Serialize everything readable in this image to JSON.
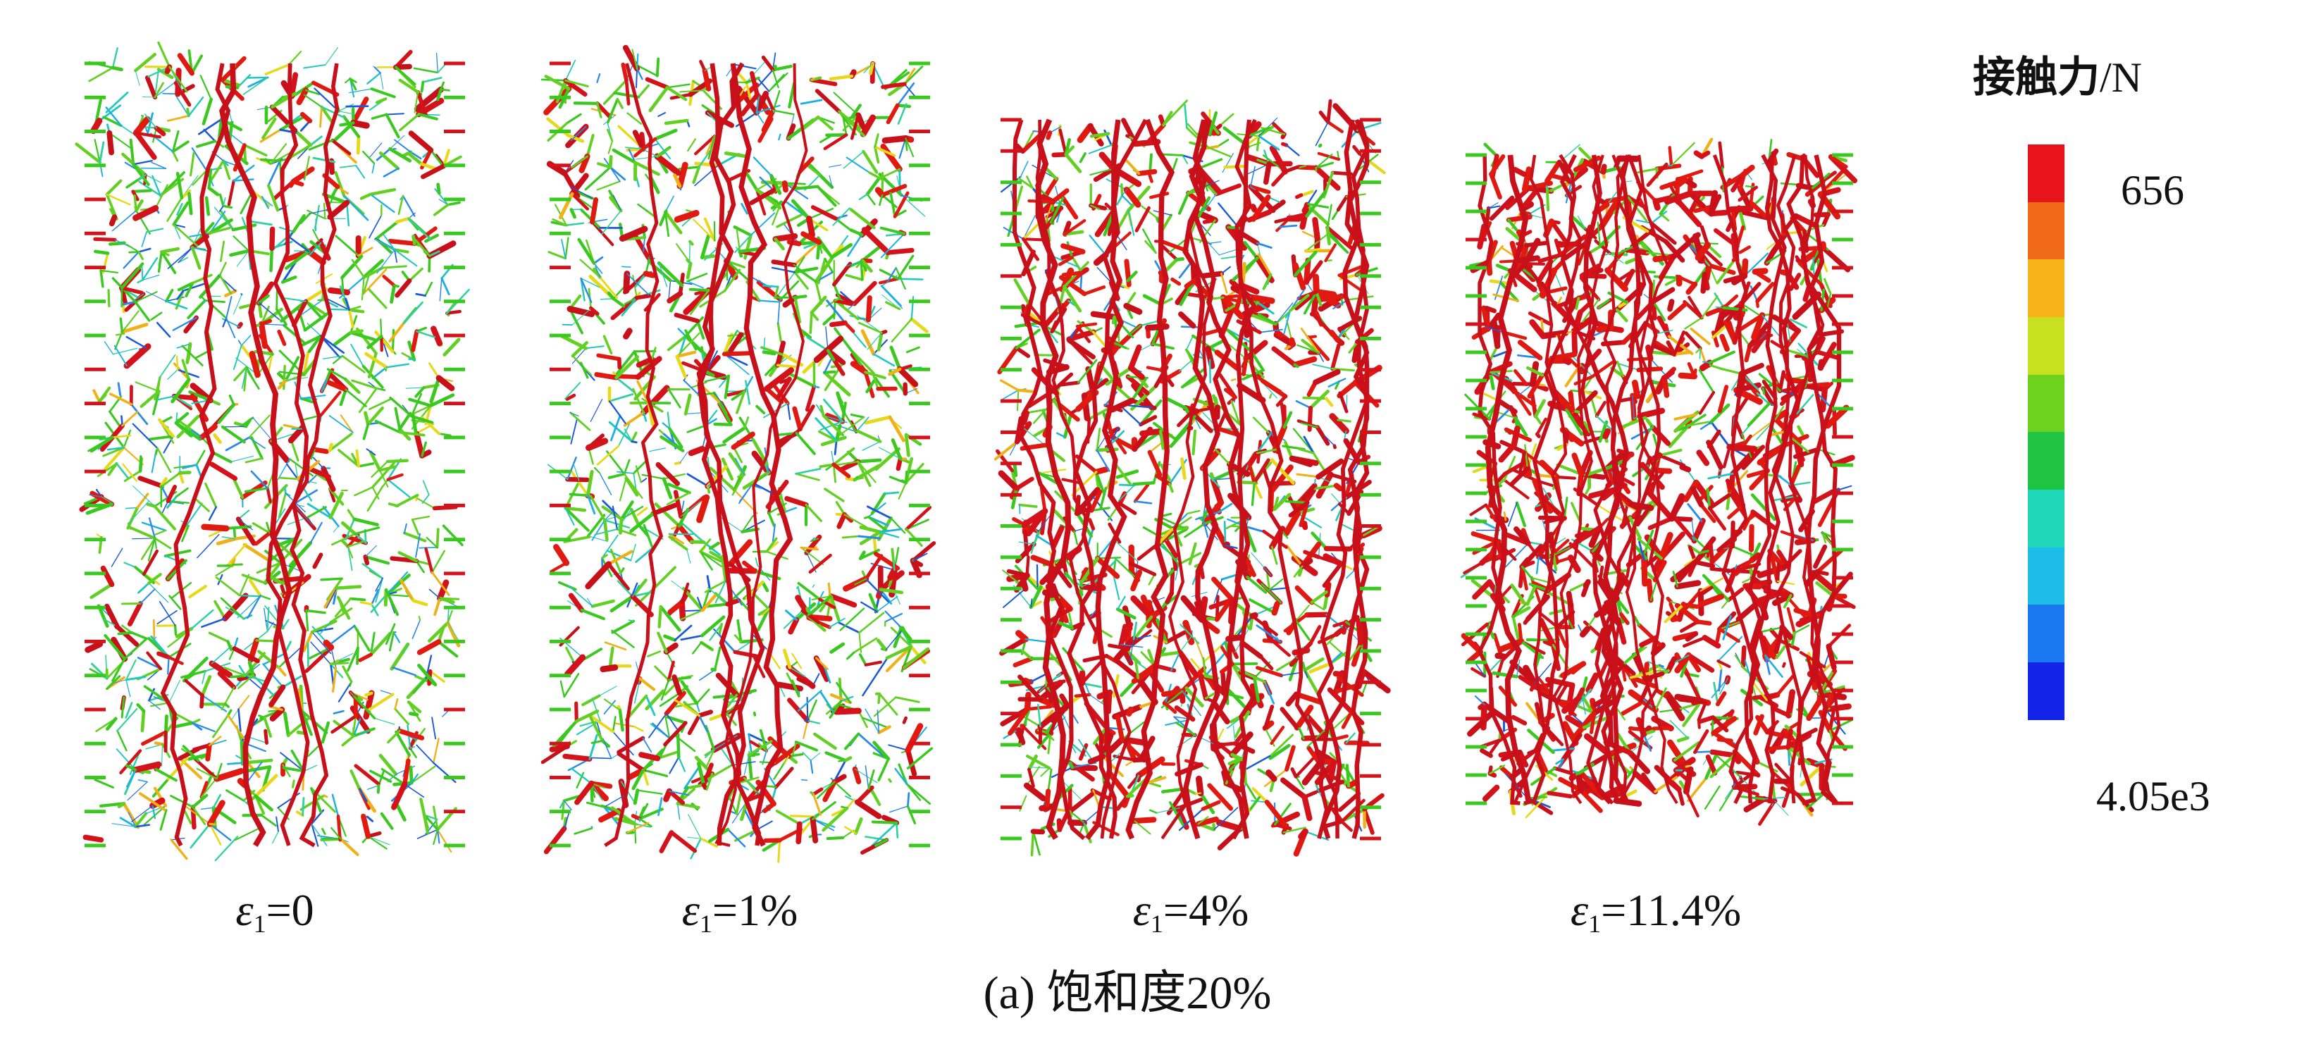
{
  "figure": {
    "caption": "(a) 饱和度20%",
    "panels": [
      {
        "strain_symbol": "ε",
        "strain_subscript": "1",
        "strain_value": "=0",
        "red_fraction": 0.12,
        "green_fraction": 0.55,
        "blue_fraction": 0.33
      },
      {
        "strain_symbol": "ε",
        "strain_subscript": "1",
        "strain_value": "=1%",
        "red_fraction": 0.18,
        "green_fraction": 0.52,
        "blue_fraction": 0.3
      },
      {
        "strain_symbol": "ε",
        "strain_subscript": "1",
        "strain_value": "=4%",
        "red_fraction": 0.45,
        "green_fraction": 0.35,
        "blue_fraction": 0.2
      },
      {
        "strain_symbol": "ε",
        "strain_subscript": "1",
        "strain_value": "=11.4%",
        "red_fraction": 0.62,
        "green_fraction": 0.26,
        "blue_fraction": 0.12
      }
    ]
  },
  "legend": {
    "title": "接触力",
    "unit": "/N",
    "max_label": "656",
    "min_label": "4.05e3",
    "colors": [
      "#e8141c",
      "#f06a1a",
      "#f8b21a",
      "#c8e020",
      "#6cd21e",
      "#1fc442",
      "#1ed6b8",
      "#1ebde8",
      "#1a78f0",
      "#1224e8"
    ]
  },
  "icons": {
    "network": "force-chain-network"
  }
}
